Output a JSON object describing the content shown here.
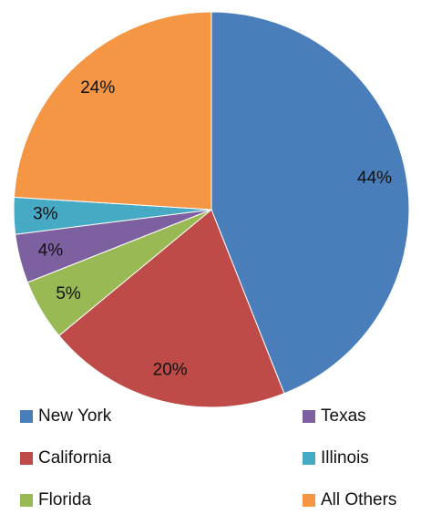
{
  "chart_data": {
    "type": "pie",
    "categories": [
      "New York",
      "California",
      "Florida",
      "Texas",
      "Illinois",
      "All Others"
    ],
    "values": [
      44,
      20,
      5,
      4,
      3,
      24
    ],
    "value_labels": [
      "44%",
      "20%",
      "5%",
      "4%",
      "3%",
      "24%"
    ],
    "colors": [
      "#4a7ebb",
      "#be4b48",
      "#98b954",
      "#7d60a0",
      "#46aac5",
      "#f59645"
    ],
    "legend": "bottom"
  }
}
